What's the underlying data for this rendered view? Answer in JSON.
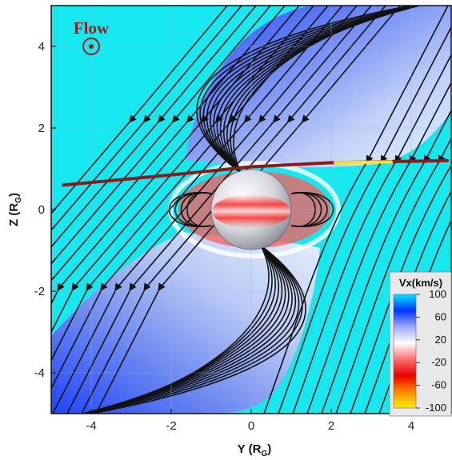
{
  "chart_data": {
    "type": "heatmap",
    "title": "",
    "xlabel": "Y (R",
    "xlabel_sub": "G",
    "xlabel_close": ")",
    "ylabel": "Z (R",
    "ylabel_sub": "G",
    "ylabel_close": ")",
    "xlim": [
      -5,
      5
    ],
    "ylim": [
      -5,
      5
    ],
    "xticks": [
      -4,
      -2,
      0,
      2,
      4
    ],
    "yticks": [
      -4,
      -2,
      0,
      2,
      4
    ],
    "xtick_labels": [
      "-4",
      "-2",
      "0",
      "2",
      "4"
    ],
    "ytick_labels": [
      "-4",
      "-2",
      "0",
      "2",
      "4"
    ],
    "grid": true,
    "annotation": {
      "text": "Flow",
      "marker": "out-of-plane circle-dot",
      "position": [
        -4,
        4
      ]
    },
    "trajectory": {
      "color": "#8b1a1a",
      "points": [
        [
          -4.7,
          0.6
        ],
        [
          -2,
          0.85
        ],
        [
          0,
          1.05
        ],
        [
          2,
          1.15
        ],
        [
          4.9,
          1.2
        ]
      ]
    },
    "highlight_segment": {
      "color": "#f2e23a",
      "points": [
        [
          2.1,
          1.15
        ],
        [
          3.5,
          1.17
        ]
      ]
    },
    "planet": {
      "center": [
        0,
        0
      ],
      "radius": 1
    },
    "colorbar": {
      "title": "Vx(km/s)",
      "ticks": [
        100,
        60,
        20,
        -20,
        -60,
        -100
      ],
      "tick_labels": [
        "100",
        "60",
        "20",
        "-20",
        "-60",
        "-100"
      ],
      "colors": [
        "#00e6ff",
        "#0033ff",
        "#9fa9ff",
        "#ffffff",
        "#ff6e6e",
        "#e60000",
        "#ff8800",
        "#ffee00"
      ],
      "range": [
        -100,
        100
      ]
    },
    "background_value": 100,
    "field": "streamlines of magnetic field, arrows indicating direction"
  }
}
